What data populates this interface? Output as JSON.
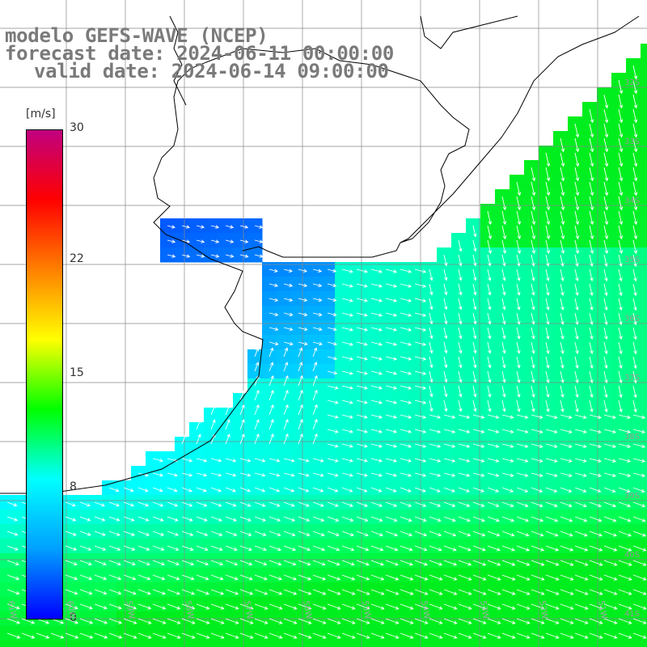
{
  "header": {
    "line1": "modelo GEFS-WAVE (NCEP)",
    "line2": "forecast date: 2024-06-11 00:00:00",
    "line3": "valid date: 2024-06-14 09:00:00"
  },
  "colorbar": {
    "unit": "[m/s]",
    "min": 0,
    "max": 30,
    "ticks": [
      "30",
      "22",
      "15",
      "8",
      "0"
    ],
    "tick_values": [
      30,
      22,
      15,
      8,
      0
    ],
    "colors": [
      "#0000ff",
      "#00a0ff",
      "#00ffff",
      "#00ff00",
      "#ffff00",
      "#ff8000",
      "#ff0000",
      "#c00080"
    ]
  },
  "map": {
    "lat_labels": [
      "32S",
      "33S",
      "34S",
      "35S",
      "36S",
      "37S",
      "38S",
      "39S",
      "40S",
      "41S"
    ],
    "lon_labels": [
      "61W",
      "60W",
      "59W",
      "58W",
      "57W",
      "56W",
      "55W",
      "54W",
      "53W",
      "52W",
      "51W"
    ],
    "wind_direction": "arrows showing surface wind speed and direction"
  }
}
